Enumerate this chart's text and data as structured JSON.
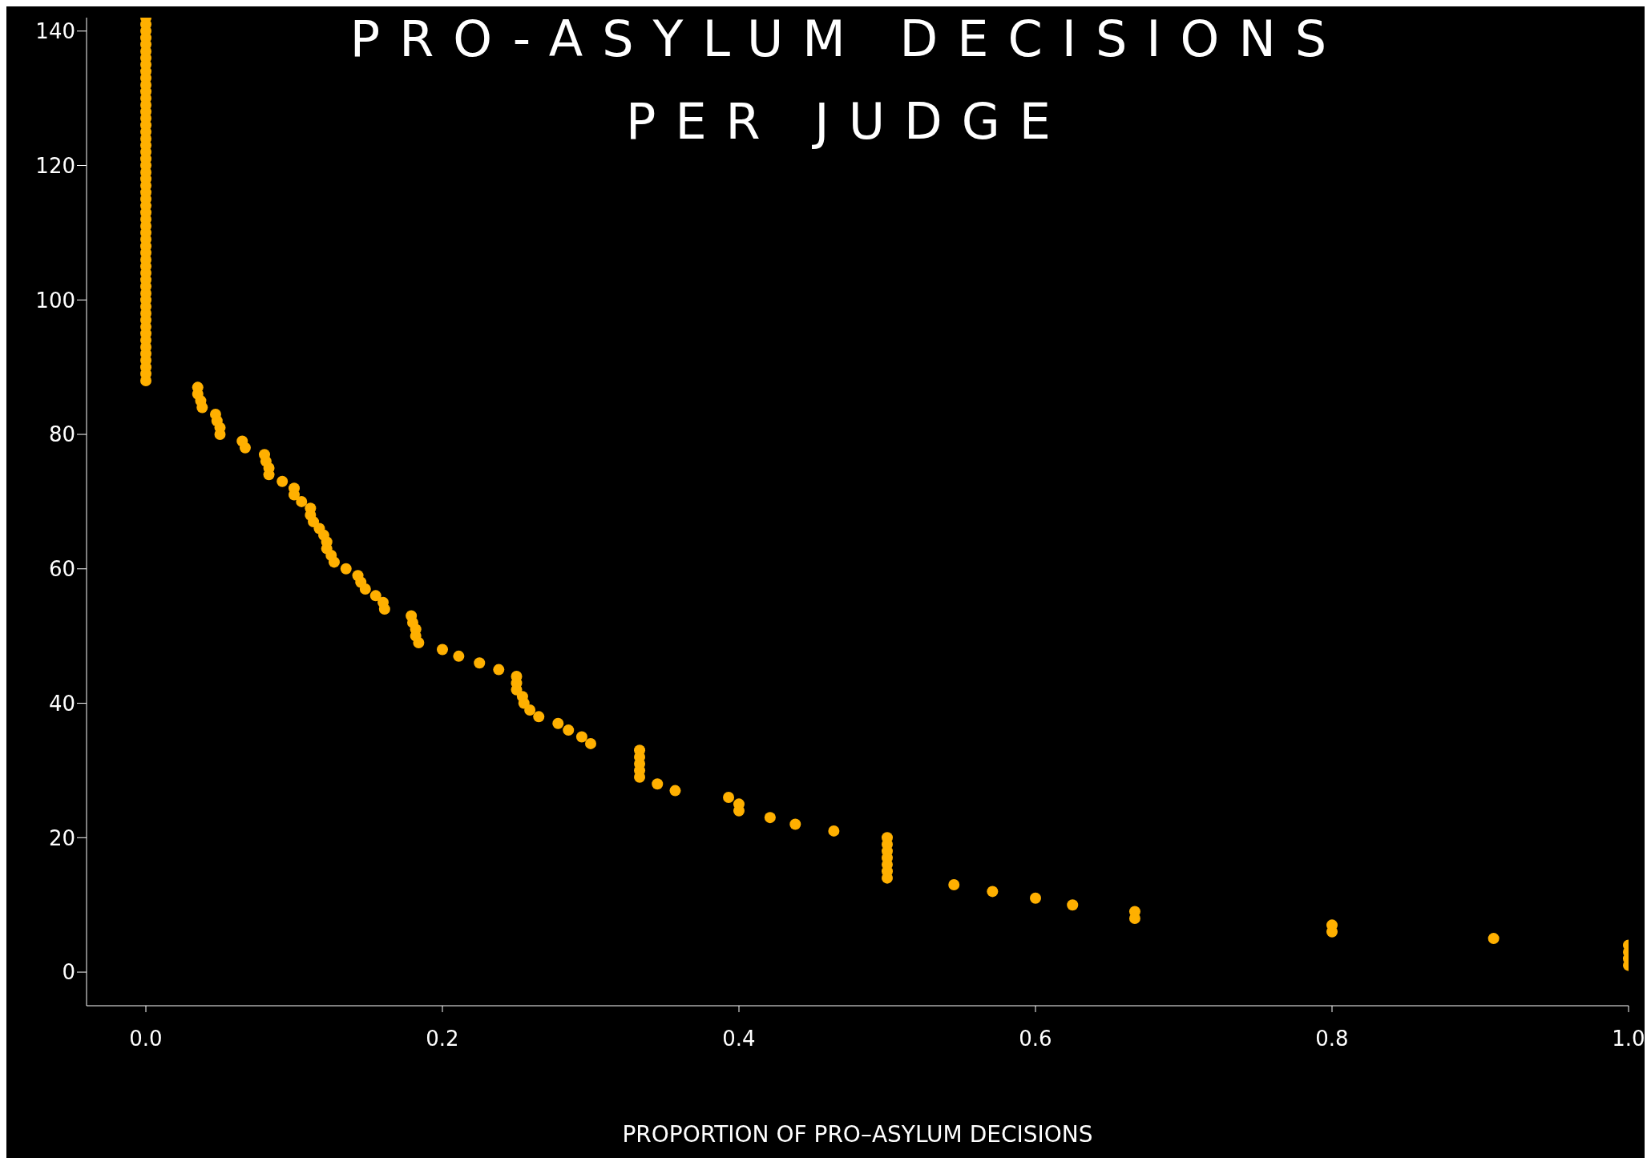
{
  "chart_data": {
    "type": "scatter",
    "title": "PRO-ASYLUM DECISIONS PER JUDGE",
    "xlabel": "PROPORTION OF PRO–ASYLUM DECISIONS",
    "x": [
      0,
      0,
      0,
      0,
      0,
      0,
      0,
      0,
      0,
      0,
      0,
      0,
      0,
      0,
      0,
      0,
      0,
      0,
      0,
      0,
      0,
      0,
      0,
      0,
      0,
      0,
      0,
      0,
      0,
      0,
      0,
      0,
      0,
      0,
      0,
      0,
      0,
      0,
      0,
      0,
      0,
      0,
      0,
      0,
      0,
      0,
      0,
      0,
      0,
      0,
      0,
      0,
      0,
      0,
      0,
      0.035,
      0.035,
      0.037,
      0.038,
      0.047,
      0.048,
      0.05,
      0.05,
      0.065,
      0.067,
      0.08,
      0.081,
      0.083,
      0.083,
      0.092,
      0.1,
      0.1,
      0.105,
      0.111,
      0.111,
      0.113,
      0.117,
      0.12,
      0.122,
      0.122,
      0.125,
      0.127,
      0.135,
      0.143,
      0.145,
      0.148,
      0.155,
      0.16,
      0.161,
      0.179,
      0.18,
      0.182,
      0.182,
      0.184,
      0.2,
      0.211,
      0.225,
      0.238,
      0.25,
      0.25,
      0.25,
      0.254,
      0.255,
      0.259,
      0.265,
      0.278,
      0.285,
      0.294,
      0.3,
      0.333,
      0.333,
      0.333,
      0.333,
      0.333,
      0.345,
      0.357,
      0.393,
      0.4,
      0.4,
      0.421,
      0.438,
      0.464,
      0.5,
      0.5,
      0.5,
      0.5,
      0.5,
      0.5,
      0.5,
      0.545,
      0.571,
      0.6,
      0.625,
      0.667,
      0.667,
      0.8,
      0.8,
      0.909,
      1,
      1,
      1,
      1
    ],
    "series": [
      {
        "color": "#ffb000",
        "values": [
          142,
          141,
          140,
          139,
          138,
          137,
          136,
          135,
          134,
          133,
          132,
          131,
          130,
          129,
          128,
          127,
          126,
          125,
          124,
          123,
          122,
          121,
          120,
          119,
          118,
          117,
          116,
          115,
          114,
          113,
          112,
          111,
          110,
          109,
          108,
          107,
          106,
          105,
          104,
          103,
          102,
          101,
          100,
          99,
          98,
          97,
          96,
          95,
          94,
          93,
          92,
          91,
          90,
          89,
          88,
          87,
          86,
          85,
          84,
          83,
          82,
          81,
          80,
          79,
          78,
          77,
          76,
          75,
          74,
          73,
          72,
          71,
          70,
          69,
          68,
          67,
          66,
          65,
          64,
          63,
          62,
          61,
          60,
          59,
          58,
          57,
          56,
          55,
          54,
          53,
          52,
          51,
          50,
          49,
          48,
          47,
          46,
          45,
          44,
          43,
          42,
          41,
          40,
          39,
          38,
          37,
          36,
          35,
          34,
          33,
          32,
          31,
          30,
          29,
          28,
          27,
          26,
          25,
          24,
          23,
          22,
          21,
          20,
          19,
          18,
          17,
          16,
          15,
          14,
          13,
          12,
          11,
          10,
          9,
          8,
          7,
          6,
          5,
          4,
          3,
          2,
          1
        ]
      }
    ],
    "xlim": [
      -0.04,
      1
    ],
    "xticks": [
      {
        "value": 0,
        "label": "0.0"
      },
      0.2,
      0.4,
      0.6,
      0.8,
      {
        "value": 1,
        "label": "1.0"
      }
    ],
    "ylim": [
      -5,
      142
    ],
    "yticks": [
      0,
      20,
      40,
      60,
      80,
      100,
      120,
      140
    ],
    "marker": "circle",
    "grid": false,
    "legend": false
  }
}
